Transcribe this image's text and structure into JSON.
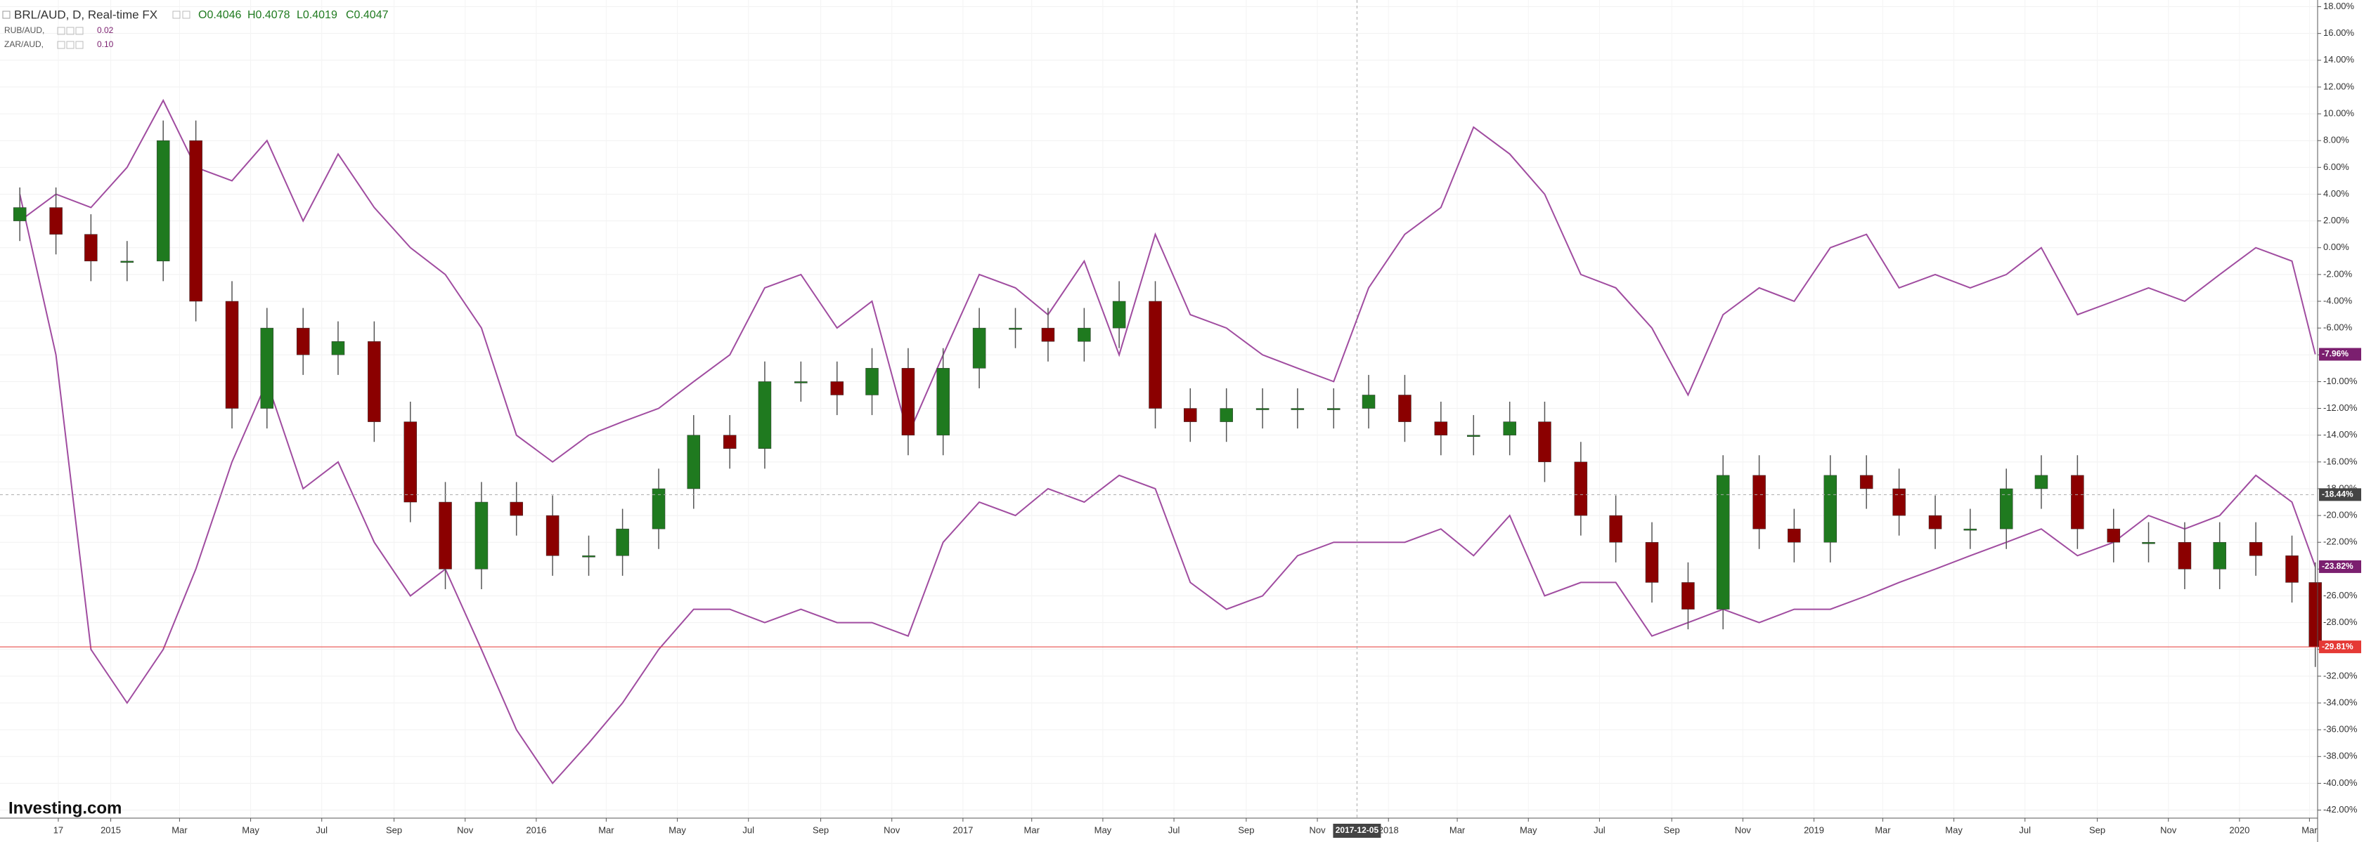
{
  "chart_data": {
    "type": "candlestick",
    "title": "BRL/AUD, D, Real-time FX",
    "ohlc_legend": [
      "O0.4046",
      "H0.4078",
      "L0.4019",
      "C0.4047"
    ],
    "logo": "Investing.com",
    "up_color": "#1f7a1f",
    "down_color": "#8b0000",
    "x": [
      "2014-10-15",
      "2014-11-15",
      "2014-12-15",
      "2015-01-15",
      "2015-02-15",
      "2015-03-15",
      "2015-04-15",
      "2015-05-15",
      "2015-06-15",
      "2015-07-15",
      "2015-08-15",
      "2015-09-15",
      "2015-10-15",
      "2015-11-15",
      "2015-12-15",
      "2016-01-15",
      "2016-02-15",
      "2016-03-15",
      "2016-04-15",
      "2016-05-15",
      "2016-06-15",
      "2016-07-15",
      "2016-08-15",
      "2016-09-15",
      "2016-10-15",
      "2016-11-15",
      "2016-12-15",
      "2017-01-15",
      "2017-02-15",
      "2017-03-15",
      "2017-04-15",
      "2017-05-15",
      "2017-06-15",
      "2017-07-15",
      "2017-08-15",
      "2017-09-15",
      "2017-10-15",
      "2017-11-15",
      "2017-12-15",
      "2018-01-15",
      "2018-02-15",
      "2018-03-15",
      "2018-04-15",
      "2018-05-15",
      "2018-06-15",
      "2018-07-15",
      "2018-08-15",
      "2018-09-15",
      "2018-10-15",
      "2018-11-15",
      "2018-12-15",
      "2019-01-15",
      "2019-02-15",
      "2019-03-15",
      "2019-04-15",
      "2019-05-15",
      "2019-06-15",
      "2019-07-15",
      "2019-08-15",
      "2019-09-15",
      "2019-10-15",
      "2019-11-15",
      "2019-12-15",
      "2020-01-15",
      "2020-02-15",
      "2020-03-06"
    ],
    "open": [
      2,
      3,
      1,
      -1,
      -1,
      8,
      -4,
      -12,
      -6,
      -8,
      -7,
      -13,
      -19,
      -24,
      -19,
      -20,
      -23,
      -23,
      -21,
      -18,
      -14,
      -15,
      -10,
      -10,
      -11,
      -9,
      -14,
      -9,
      -6,
      -6,
      -7,
      -6,
      -4,
      -12,
      -13,
      -12,
      -12,
      -12,
      -12,
      -11,
      -13,
      -14,
      -14,
      -13,
      -16,
      -20,
      -22,
      -25,
      -27,
      -17,
      -21,
      -22,
      -17,
      -18,
      -20,
      -21,
      -21,
      -18,
      -17,
      -21,
      -22,
      -22,
      -24,
      -22,
      -23,
      -25
    ],
    "high": [
      4.5,
      4.5,
      2.5,
      0.5,
      9.5,
      9.5,
      -2.5,
      -4.5,
      -4.5,
      -5.5,
      -5.5,
      -11.5,
      -17.5,
      -17.5,
      -17.5,
      -18.5,
      -21.5,
      -19.5,
      -16.5,
      -12.5,
      -12.5,
      -8.5,
      -8.5,
      -8.5,
      -7.5,
      -7.5,
      -7.5,
      -4.5,
      -4.5,
      -4.5,
      -4.5,
      -2.5,
      -2.5,
      -10.5,
      -10.5,
      -10.5,
      -10.5,
      -10.5,
      -9.5,
      -9.5,
      -11.5,
      -12.5,
      -11.5,
      -11.5,
      -14.5,
      -18.5,
      -20.5,
      -23.5,
      -15.5,
      -15.5,
      -19.5,
      -15.5,
      -15.5,
      -16.5,
      -18.5,
      -19.5,
      -16.5,
      -15.5,
      -15.5,
      -19.5,
      -20.5,
      -20.5,
      -20.5,
      -20.5,
      -21.5,
      -23.5
    ],
    "low": [
      0.5,
      -0.5,
      -2.5,
      -2.5,
      -2.5,
      -5.5,
      -13.5,
      -13.5,
      -9.5,
      -9.5,
      -14.5,
      -20.5,
      -25.5,
      -25.5,
      -21.5,
      -24.5,
      -24.5,
      -24.5,
      -22.5,
      -19.5,
      -16.5,
      -16.5,
      -11.5,
      -12.5,
      -12.5,
      -15.5,
      -15.5,
      -10.5,
      -7.5,
      -8.5,
      -8.5,
      -7.5,
      -13.5,
      -14.5,
      -14.5,
      -13.5,
      -13.5,
      -13.5,
      -13.5,
      -14.5,
      -15.5,
      -15.5,
      -15.5,
      -17.5,
      -21.5,
      -23.5,
      -26.5,
      -28.5,
      -28.5,
      -22.5,
      -23.5,
      -23.5,
      -19.5,
      -21.5,
      -22.5,
      -22.5,
      -22.5,
      -19.5,
      -22.5,
      -23.5,
      -23.5,
      -25.5,
      -25.5,
      -24.5,
      -26.5,
      -31.31
    ],
    "close": [
      3,
      1,
      -1,
      -1,
      8,
      -4,
      -12,
      -6,
      -8,
      -7,
      -13,
      -19,
      -24,
      -19,
      -20,
      -23,
      -23,
      -21,
      -18,
      -14,
      -15,
      -10,
      -10,
      -11,
      -9,
      -14,
      -9,
      -6,
      -6,
      -7,
      -6,
      -4,
      -12,
      -13,
      -12,
      -12,
      -12,
      -12,
      -11,
      -13,
      -14,
      -14,
      -13,
      -16,
      -20,
      -22,
      -25,
      -27,
      -17,
      -21,
      -22,
      -17,
      -18,
      -20,
      -21,
      -21,
      -18,
      -17,
      -21,
      -22,
      -22,
      -24,
      -22,
      -23,
      -25,
      -29.81
    ],
    "last_label": "-29.81%",
    "last_color": "#e53935",
    "series": [
      {
        "type": "line",
        "name": "RUB/AUD,",
        "legend_value": "0.02",
        "color": "#a04ca0",
        "label_color": "#7b1f6f",
        "last_label": "-23.82%",
        "values": [
          4,
          -8,
          -30,
          -34,
          -30,
          -24,
          -16,
          -10,
          -18,
          -16,
          -22,
          -26,
          -24,
          -30,
          -36,
          -40,
          -37,
          -34,
          -30,
          -27,
          -27,
          -28,
          -27,
          -28,
          -28,
          -29,
          -22,
          -19,
          -20,
          -18,
          -19,
          -17,
          -18,
          -25,
          -27,
          -26,
          -23,
          -22,
          -22,
          -22,
          -21,
          -23,
          -20,
          -26,
          -25,
          -25,
          -29,
          -28,
          -27,
          -28,
          -27,
          -27,
          -26,
          -25,
          -24,
          -23,
          -22,
          -21,
          -23,
          -22,
          -20,
          -21,
          -20,
          -17,
          -19,
          -23.82
        ]
      },
      {
        "type": "line",
        "name": "ZAR/AUD,",
        "legend_value": "0.10",
        "color": "#a04ca0",
        "label_color": "#7b1f6f",
        "last_label": "-7.96%",
        "values": [
          2,
          4,
          3,
          6,
          11,
          6,
          5,
          8,
          2,
          7,
          3,
          0,
          -2,
          -6,
          -14,
          -16,
          -14,
          -13,
          -12,
          -10,
          -8,
          -3,
          -2,
          -6,
          -4,
          -14,
          -8,
          -2,
          -3,
          -5,
          -1,
          -8,
          1,
          -5,
          -6,
          -8,
          -9,
          -10,
          -3,
          1,
          3,
          9,
          7,
          4,
          -2,
          -3,
          -6,
          -11,
          -5,
          -3,
          -4,
          0,
          1,
          -3,
          -2,
          -3,
          -2,
          0,
          -5,
          -4,
          -3,
          -4,
          -2,
          0,
          -1,
          -7.96
        ]
      }
    ],
    "crosshair": {
      "x": "2017-12-05",
      "y": {
        "value": -18.44,
        "label": "-18.44%"
      }
    },
    "xlim": [
      "2014-09-28",
      "2020-03-08"
    ],
    "xticks": [
      {
        "value": "2014-11-17",
        "label": "17"
      },
      {
        "value": "2015-01-01",
        "label": "2015"
      },
      {
        "value": "2015-03-01",
        "label": "Mar"
      },
      {
        "value": "2015-05-01",
        "label": "May"
      },
      {
        "value": "2015-07-01",
        "label": "Jul"
      },
      {
        "value": "2015-09-01",
        "label": "Sep"
      },
      {
        "value": "2015-11-01",
        "label": "Nov"
      },
      {
        "value": "2016-01-01",
        "label": "2016"
      },
      {
        "value": "2016-03-01",
        "label": "Mar"
      },
      {
        "value": "2016-05-01",
        "label": "May"
      },
      {
        "value": "2016-07-01",
        "label": "Jul"
      },
      {
        "value": "2016-09-01",
        "label": "Sep"
      },
      {
        "value": "2016-11-01",
        "label": "Nov"
      },
      {
        "value": "2017-01-01",
        "label": "2017"
      },
      {
        "value": "2017-03-01",
        "label": "Mar"
      },
      {
        "value": "2017-05-01",
        "label": "May"
      },
      {
        "value": "2017-07-01",
        "label": "Jul"
      },
      {
        "value": "2017-09-01",
        "label": "Sep"
      },
      {
        "value": "2017-11-01",
        "label": "Nov"
      },
      {
        "value": "2018-01-01",
        "label": "2018"
      },
      {
        "value": "2018-03-01",
        "label": "Mar"
      },
      {
        "value": "2018-05-01",
        "label": "May"
      },
      {
        "value": "2018-07-01",
        "label": "Jul"
      },
      {
        "value": "2018-09-01",
        "label": "Sep"
      },
      {
        "value": "2018-11-01",
        "label": "Nov"
      },
      {
        "value": "2019-01-01",
        "label": "2019"
      },
      {
        "value": "2019-03-01",
        "label": "Mar"
      },
      {
        "value": "2019-05-01",
        "label": "May"
      },
      {
        "value": "2019-07-01",
        "label": "Jul"
      },
      {
        "value": "2019-09-01",
        "label": "Sep"
      },
      {
        "value": "2019-11-01",
        "label": "Nov"
      },
      {
        "value": "2020-01-01",
        "label": "2020"
      },
      {
        "value": "2020-03-01",
        "label": "Mar"
      }
    ],
    "ylim": [
      -42.6,
      18.5
    ],
    "yticks": [
      {
        "value": 18,
        "label": "18.00%"
      },
      {
        "value": 16,
        "label": "16.00%"
      },
      {
        "value": 14,
        "label": "14.00%"
      },
      {
        "value": 12,
        "label": "12.00%"
      },
      {
        "value": 10,
        "label": "10.00%"
      },
      {
        "value": 8,
        "label": "8.00%"
      },
      {
        "value": 6,
        "label": "6.00%"
      },
      {
        "value": 4,
        "label": "4.00%"
      },
      {
        "value": 2,
        "label": "2.00%"
      },
      {
        "value": 0,
        "label": "0.00%"
      },
      {
        "value": -2,
        "label": "-2.00%"
      },
      {
        "value": -4,
        "label": "-4.00%"
      },
      {
        "value": -6,
        "label": "-6.00%"
      },
      {
        "value": -8,
        "label": "-8.00%"
      },
      {
        "value": -10,
        "label": "-10.00%"
      },
      {
        "value": -12,
        "label": "-12.00%"
      },
      {
        "value": -14,
        "label": "-14.00%"
      },
      {
        "value": -16,
        "label": "-16.00%"
      },
      {
        "value": -18,
        "label": "-18.00%"
      },
      {
        "value": -20,
        "label": "-20.00%"
      },
      {
        "value": -22,
        "label": "-22.00%"
      },
      {
        "value": -24,
        "label": "-24.00%"
      },
      {
        "value": -26,
        "label": "-26.00%"
      },
      {
        "value": -28,
        "label": "-28.00%"
      },
      {
        "value": -30,
        "label": "-30.00%"
      },
      {
        "value": -32,
        "label": "-32.00%"
      },
      {
        "value": -34,
        "label": "-34.00%"
      },
      {
        "value": -36,
        "label": "-36.00%"
      },
      {
        "value": -38,
        "label": "-38.00%"
      },
      {
        "value": -40,
        "label": "-40.00%"
      },
      {
        "value": -42,
        "label": "-42.00%"
      }
    ],
    "grid": true
  }
}
